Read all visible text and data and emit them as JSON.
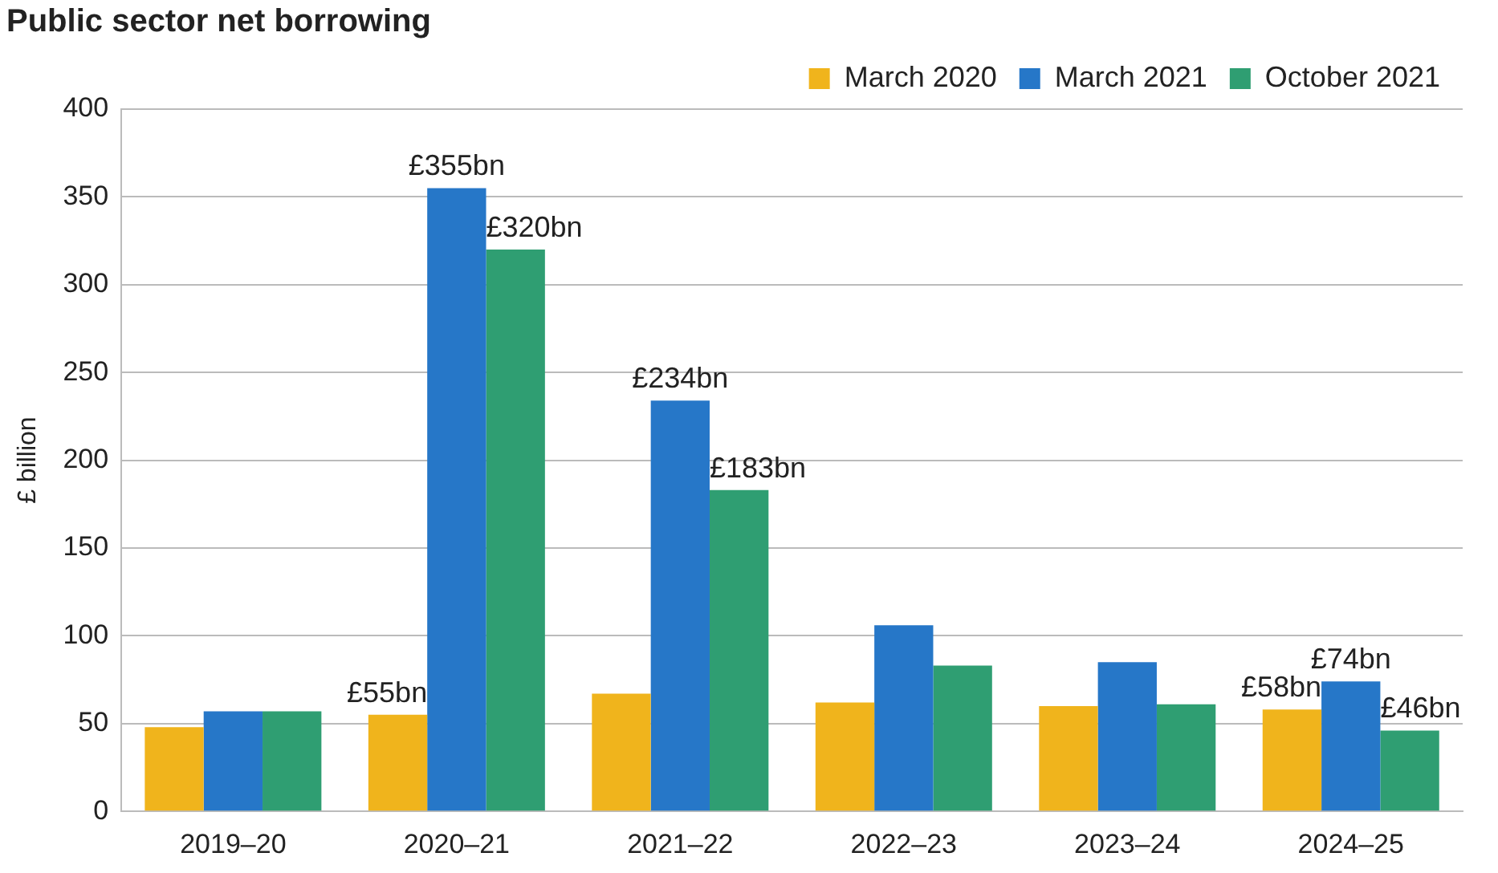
{
  "chart_data": {
    "type": "bar",
    "title": "Public sector net borrowing",
    "ylabel": "£ billion",
    "categories": [
      "2019–20",
      "2020–21",
      "2021–22",
      "2022–23",
      "2023–24",
      "2024–25"
    ],
    "series": [
      {
        "name": "March 2020",
        "color": "#f0b41c",
        "values": [
          48,
          55,
          67,
          62,
          60,
          58
        ],
        "value_labels": [
          null,
          "£55bn",
          null,
          null,
          null,
          "£58bn"
        ]
      },
      {
        "name": "March 2021",
        "color": "#2677c8",
        "values": [
          57,
          355,
          234,
          106,
          85,
          74
        ],
        "value_labels": [
          null,
          "£355bn",
          "£234bn",
          null,
          null,
          "£74bn"
        ]
      },
      {
        "name": "October 2021",
        "color": "#2f9e72",
        "values": [
          57,
          320,
          183,
          83,
          61,
          46
        ],
        "value_labels": [
          null,
          "£320bn",
          "£183bn",
          null,
          null,
          "£46bn"
        ]
      }
    ],
    "ylim": [
      0,
      400
    ],
    "yticks": [
      0,
      50,
      100,
      150,
      200,
      250,
      300,
      350,
      400
    ],
    "grid": "y",
    "legend": "top right"
  }
}
